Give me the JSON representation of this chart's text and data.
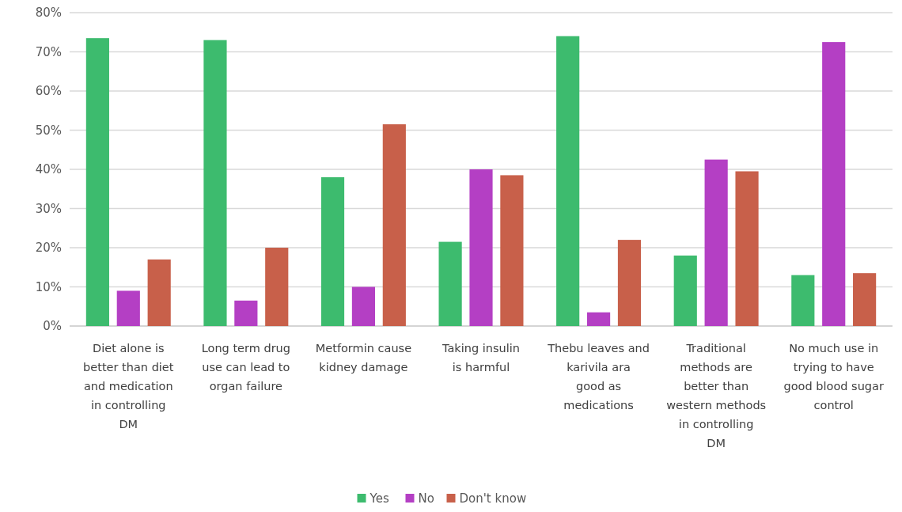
{
  "chart_data": {
    "type": "bar",
    "categories": [
      "Diet alone is better than diet and medication in controlling DM",
      "Long term drug use can lead to organ failure",
      "Metformin cause kidney damage",
      "Taking insulin is harmful",
      "Thebu leaves and karivila ara good as medications",
      "Traditional methods are better than western methods in controlling DM",
      "No much use in trying to have good blood sugar control"
    ],
    "series": [
      {
        "name": "Yes",
        "color": "#3dbb6e",
        "values": [
          73.5,
          73,
          38,
          21.5,
          74,
          18,
          13
        ]
      },
      {
        "name": "No",
        "color": "#b43fc4",
        "values": [
          9,
          6.5,
          10,
          40,
          3.5,
          42.5,
          72.5
        ]
      },
      {
        "name": "Don't know",
        "color": "#c8604a",
        "values": [
          17,
          20,
          51.5,
          38.5,
          22,
          39.5,
          13.5
        ]
      }
    ],
    "ylim": [
      0,
      80
    ],
    "yticks": [
      {
        "value": 0,
        "label": "0%"
      },
      {
        "value": 10,
        "label": "10%"
      },
      {
        "value": 20,
        "label": "20%"
      },
      {
        "value": 30,
        "label": "30%"
      },
      {
        "value": 40,
        "label": "40%"
      },
      {
        "value": 50,
        "label": "50%"
      },
      {
        "value": 60,
        "label": "60%"
      },
      {
        "value": 70,
        "label": "70%"
      },
      {
        "value": 80,
        "label": "80%"
      }
    ],
    "grid": "y",
    "legend": "bottom"
  }
}
